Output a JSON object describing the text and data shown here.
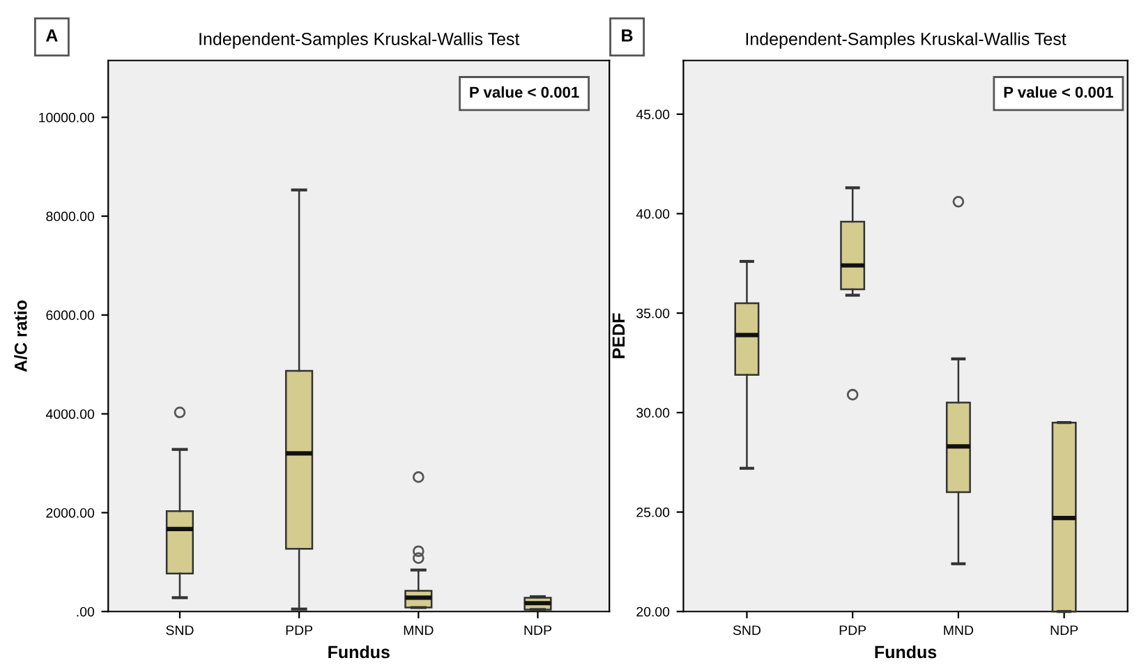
{
  "chart_data": [
    {
      "type": "box",
      "title": "Independent-Samples Kruskal-Wallis Test",
      "xlabel": "Fundus",
      "ylabel": "A/C ratio",
      "categories": [
        "SND",
        "PDP",
        "MND",
        "NDP"
      ],
      "color": "#d4cc8e",
      "ylim": [
        0,
        11150
      ],
      "yticks": [
        {
          "value": 0,
          "label": ".00"
        },
        {
          "value": 2000,
          "label": "2000.00"
        },
        {
          "value": 4000,
          "label": "4000.00"
        },
        {
          "value": 6000,
          "label": "6000.00"
        },
        {
          "value": 8000,
          "label": "8000.00"
        },
        {
          "value": 10000,
          "label": "10000.00"
        }
      ],
      "grid": false,
      "annotations": [
        "A",
        "P value < 0.001"
      ],
      "boxes": [
        {
          "low": 280,
          "q1": 770,
          "median": 1670,
          "q3": 2030,
          "high": 3280,
          "outliers": [
            4030
          ]
        },
        {
          "low": 50,
          "q1": 1270,
          "median": 3200,
          "q3": 4870,
          "high": 8530
        },
        {
          "low": 80,
          "q1": 80,
          "median": 280,
          "q3": 420,
          "high": 840,
          "outliers": [
            1080,
            1220,
            2720
          ]
        },
        {
          "low": 40,
          "q1": 40,
          "median": 170,
          "q3": 280,
          "high": 300
        }
      ]
    },
    {
      "type": "box",
      "title": "Independent-Samples Kruskal-Wallis Test",
      "xlabel": "Fundus",
      "ylabel": "PEDF",
      "categories": [
        "SND",
        "PDP",
        "MND",
        "NDP"
      ],
      "color": "#d4cc8e",
      "ylim": [
        20,
        47.7
      ],
      "yticks": [
        {
          "value": 20,
          "label": "20.00"
        },
        {
          "value": 25,
          "label": "25.00"
        },
        {
          "value": 30,
          "label": "30.00"
        },
        {
          "value": 35,
          "label": "35.00"
        },
        {
          "value": 40,
          "label": "40.00"
        },
        {
          "value": 45,
          "label": "45.00"
        }
      ],
      "grid": false,
      "annotations": [
        "B",
        "P value < 0.001"
      ],
      "boxes": [
        {
          "low": 27.2,
          "q1": 31.9,
          "median": 33.9,
          "q3": 35.5,
          "high": 37.6
        },
        {
          "low": 35.9,
          "q1": 36.2,
          "median": 37.4,
          "q3": 39.6,
          "high": 41.3,
          "outliers": [
            30.9
          ]
        },
        {
          "low": 22.4,
          "q1": 26.0,
          "median": 28.3,
          "q3": 30.5,
          "high": 32.7,
          "outliers": [
            40.6
          ]
        },
        {
          "low": 20,
          "q1": 20,
          "median": 24.7,
          "q3": 29.5,
          "high": 29.5
        }
      ]
    }
  ]
}
